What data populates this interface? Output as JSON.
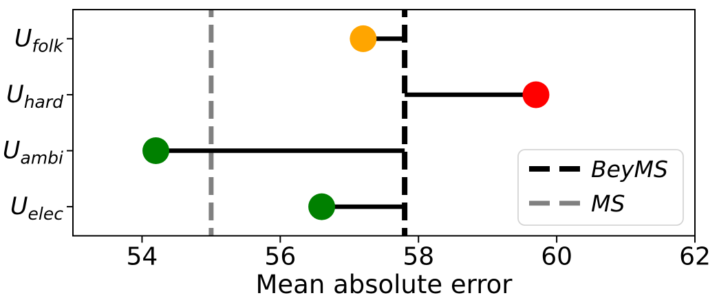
{
  "figure": {
    "background": "#ffffff"
  },
  "chart_data": {
    "type": "lollipop",
    "title": "",
    "xlabel": "Mean absolute error",
    "xlim": [
      53,
      62
    ],
    "xticks": [
      54,
      56,
      58,
      60,
      62
    ],
    "grid": false,
    "axis_color": "#000000",
    "categories": [
      {
        "id": "U_folk",
        "base": "U",
        "subscript": "folk",
        "value": 57.2,
        "color": "#FFA500"
      },
      {
        "id": "U_hard",
        "base": "U",
        "subscript": "hard",
        "value": 59.7,
        "color": "#FF0000"
      },
      {
        "id": "U_ambi",
        "base": "U",
        "subscript": "ambi",
        "value": 54.2,
        "color": "#008000"
      },
      {
        "id": "U_elec",
        "base": "U",
        "subscript": "elec",
        "value": 56.6,
        "color": "#008000"
      }
    ],
    "reference_lines": [
      {
        "label": "BeyMS",
        "value": 57.8,
        "color": "#000000",
        "style": "dashed",
        "width": 8
      },
      {
        "label": "MS",
        "value": 55.0,
        "color": "#808080",
        "style": "dashed",
        "width": 7
      }
    ],
    "stems": {
      "connect_to_label": "BeyMS",
      "connect_to_value": 57.8,
      "color": "#000000"
    },
    "legend": {
      "position": "lower right",
      "entries": [
        {
          "label": "BeyMS",
          "color": "#000000"
        },
        {
          "label": "MS",
          "color": "#808080"
        }
      ]
    }
  }
}
